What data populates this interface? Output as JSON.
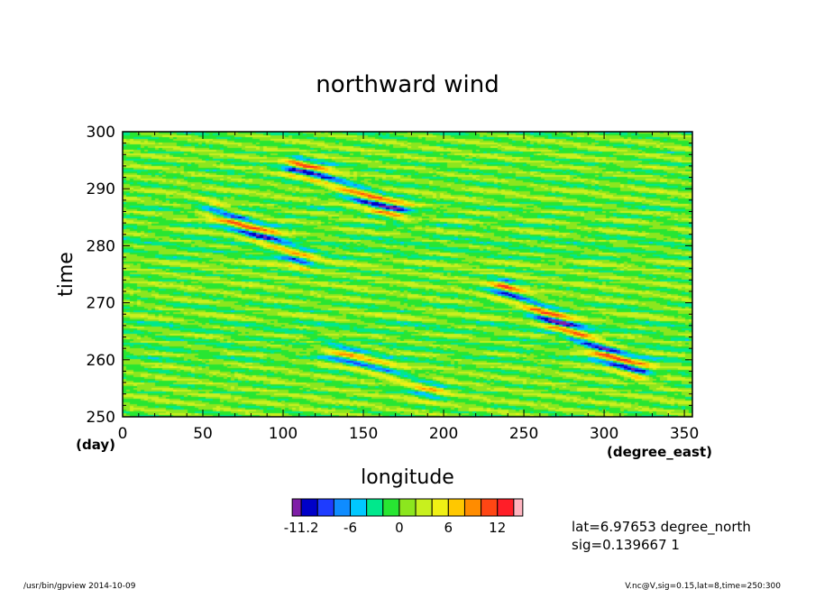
{
  "chart_data": {
    "type": "heatmap",
    "title": "northward wind",
    "xlabel": "longitude",
    "xunit": "(degree_east)",
    "ylabel": "time",
    "yunit": "(day)",
    "xlim": [
      0,
      355
    ],
    "ylim": [
      250,
      300
    ],
    "xticks": [
      0,
      50,
      100,
      150,
      200,
      250,
      300,
      350
    ],
    "yticks": [
      250,
      260,
      270,
      280,
      290,
      300
    ],
    "colorbar": {
      "levels": [
        -13.2,
        -11.2,
        -9.2,
        -7.6,
        -6,
        -4,
        -2,
        0,
        2,
        4,
        6,
        8,
        10,
        12,
        14
      ],
      "tick_labels": [
        "-11.2",
        "-6",
        "0",
        "6",
        "12"
      ],
      "tick_values": [
        -11.2,
        -6,
        0,
        6,
        12
      ],
      "colors": [
        "#7f1fa7",
        "#0000c8",
        "#1e3cff",
        "#0f8cff",
        "#00c8ff",
        "#00e88c",
        "#28e632",
        "#8ce61e",
        "#c8f01e",
        "#f0f014",
        "#ffc800",
        "#ff8c00",
        "#ff4614",
        "#ff1e28",
        "#ffb4c0"
      ]
    },
    "features": [
      {
        "lon_start": 60,
        "day_start": 286,
        "lon_end": 110,
        "day_end": 278,
        "amplitude": 10
      },
      {
        "lon_start": 110,
        "day_start": 294,
        "lon_end": 170,
        "day_end": 286,
        "amplitude": 10
      },
      {
        "lon_start": 240,
        "day_start": 272,
        "lon_end": 320,
        "day_end": 258,
        "amplitude": 11
      },
      {
        "lon_start": 130,
        "day_start": 262,
        "lon_end": 190,
        "day_end": 255,
        "amplitude": 7
      }
    ]
  },
  "annotations": {
    "lat": "lat=6.97653 degree_north",
    "sig": "sig=0.139667 1",
    "footer_left": "/usr/bin/gpview   2014-10-09",
    "footer_right": "V.nc@V,sig=0.15,lat=8,time=250:300"
  }
}
